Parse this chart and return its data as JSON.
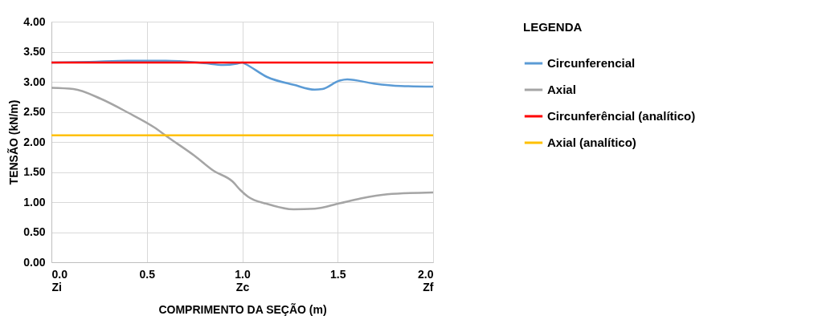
{
  "chart_data": {
    "type": "line",
    "xlabel": "COMPRIMENTO DA SEÇÃO (m)",
    "ylabel": "TENSÃO (kN/m)",
    "legend_title": "LEGENDA",
    "legend": "right",
    "grid": true,
    "marker": "none",
    "line_style": "solid",
    "xlim": [
      0,
      2
    ],
    "xticks": [
      {
        "value": 0,
        "label": "0.0\nZi"
      },
      {
        "value": 0.5,
        "label": "0.5"
      },
      {
        "value": 1,
        "label": "1.0\nZc"
      },
      {
        "value": 1.5,
        "label": "1.5"
      },
      {
        "value": 2,
        "label": "2.0\nZf"
      }
    ],
    "ylim": [
      0,
      4
    ],
    "yticks": [
      {
        "value": 0,
        "label": "0.00"
      },
      {
        "value": 0.5,
        "label": "0.50"
      },
      {
        "value": 1,
        "label": "1.00"
      },
      {
        "value": 1.5,
        "label": "1.50"
      },
      {
        "value": 2,
        "label": "2.00"
      },
      {
        "value": 2.5,
        "label": "2.50"
      },
      {
        "value": 3,
        "label": "3.00"
      },
      {
        "value": 3.5,
        "label": "3.50"
      },
      {
        "value": 4,
        "label": "4.00"
      }
    ],
    "series": [
      {
        "name": "Circunferencial",
        "color": "#5b9bd5",
        "x": [
          0,
          0.2,
          0.4,
          0.6,
          0.8,
          0.9,
          0.97,
          1.0,
          1.02,
          1.13,
          1.27,
          1.38,
          1.42,
          1.51,
          1.55,
          1.69,
          1.83,
          2.0
        ],
        "values": [
          3.32,
          3.33,
          3.35,
          3.35,
          3.31,
          3.28,
          3.3,
          3.32,
          3.29,
          3.08,
          2.95,
          2.87,
          2.88,
          3.02,
          3.04,
          2.97,
          2.93,
          2.92
        ]
      },
      {
        "name": "Axial",
        "color": "#a5a5a5",
        "x": [
          0,
          0.115,
          0.257,
          0.4,
          0.54,
          0.61,
          0.75,
          0.85,
          0.95,
          0.99,
          1.03,
          1.13,
          1.27,
          1.38,
          1.51,
          1.62,
          1.76,
          2.0
        ],
        "values": [
          2.9,
          2.88,
          2.72,
          2.49,
          2.24,
          2.08,
          1.77,
          1.52,
          1.34,
          1.2,
          1.09,
          0.97,
          0.88,
          0.89,
          0.98,
          1.06,
          1.13,
          1.16
        ]
      },
      {
        "name": "Circunferêncial (analítico)",
        "color": "#ff0000",
        "x": [
          0,
          2
        ],
        "values": [
          3.32,
          3.32
        ]
      },
      {
        "name": "Axial (analítico)",
        "color": "#ffc000",
        "x": [
          0,
          2
        ],
        "values": [
          2.11,
          2.11
        ]
      }
    ]
  }
}
